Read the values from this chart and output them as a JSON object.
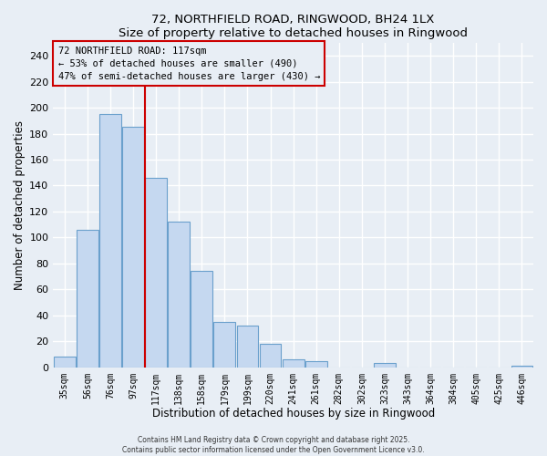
{
  "title": "72, NORTHFIELD ROAD, RINGWOOD, BH24 1LX",
  "subtitle": "Size of property relative to detached houses in Ringwood",
  "xlabel": "Distribution of detached houses by size in Ringwood",
  "ylabel": "Number of detached properties",
  "bar_labels": [
    "35sqm",
    "56sqm",
    "76sqm",
    "97sqm",
    "117sqm",
    "138sqm",
    "158sqm",
    "179sqm",
    "199sqm",
    "220sqm",
    "241sqm",
    "261sqm",
    "282sqm",
    "302sqm",
    "323sqm",
    "343sqm",
    "364sqm",
    "384sqm",
    "405sqm",
    "425sqm",
    "446sqm"
  ],
  "bar_values": [
    8,
    106,
    195,
    185,
    146,
    112,
    74,
    35,
    32,
    18,
    6,
    5,
    0,
    0,
    3,
    0,
    0,
    0,
    0,
    0,
    1
  ],
  "bar_color": "#c5d8f0",
  "bar_edge_color": "#6aa0cc",
  "vline_color": "#cc0000",
  "vline_x_index": 4,
  "annotation_title": "72 NORTHFIELD ROAD: 117sqm",
  "annotation_line1": "← 53% of detached houses are smaller (490)",
  "annotation_line2": "47% of semi-detached houses are larger (430) →",
  "ylim": [
    0,
    250
  ],
  "yticks": [
    0,
    20,
    40,
    60,
    80,
    100,
    120,
    140,
    160,
    180,
    200,
    220,
    240
  ],
  "footer1": "Contains HM Land Registry data © Crown copyright and database right 2025.",
  "footer2": "Contains public sector information licensed under the Open Government Licence v3.0.",
  "background_color": "#e8eef5",
  "grid_color": "#ffffff"
}
